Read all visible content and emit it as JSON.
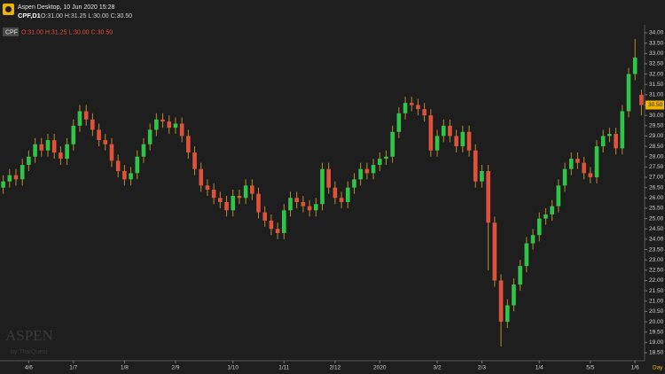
{
  "app_title": "Aspen Desktop, 10 Jun 2020 15:28",
  "symbol_label": "CPF,D1",
  "header_ohlc": "O:31.00 H:31.25 L:30.00 C:30.50",
  "badge": "CPF",
  "badge_ohlc": "O:31.00 H:31.25 L:30.00 C:30.50",
  "watermark": "ASPEN",
  "watermark_sub": "by ThaiQuest",
  "chart_data": {
    "type": "candlestick",
    "x_unit": "Day",
    "last_price_label": "30.50",
    "up_color": "#2fc548",
    "down_color": "#e2513a",
    "wick_color": "#b88a2e",
    "grid": false,
    "ylim": [
      18.2,
      34.3
    ],
    "yticks": [
      {
        "value": 18.5,
        "label": "18.50"
      },
      {
        "value": 19,
        "label": "19.00"
      },
      {
        "value": 19.5,
        "label": "19.50"
      },
      {
        "value": 20,
        "label": "20.00"
      },
      {
        "value": 20.5,
        "label": "20.50"
      },
      {
        "value": 21,
        "label": "21.00"
      },
      {
        "value": 21.5,
        "label": "21.50"
      },
      {
        "value": 22,
        "label": "22.00"
      },
      {
        "value": 22.5,
        "label": "22.50"
      },
      {
        "value": 23,
        "label": "23.00"
      },
      {
        "value": 23.5,
        "label": "23.50"
      },
      {
        "value": 24,
        "label": "24.00"
      },
      {
        "value": 24.5,
        "label": "24.50"
      },
      {
        "value": 25,
        "label": "25.00"
      },
      {
        "value": 25.5,
        "label": "25.50"
      },
      {
        "value": 26,
        "label": "26.00"
      },
      {
        "value": 26.5,
        "label": "26.50"
      },
      {
        "value": 27,
        "label": "27.00"
      },
      {
        "value": 27.5,
        "label": "27.50"
      },
      {
        "value": 28,
        "label": "28.00"
      },
      {
        "value": 28.5,
        "label": "28.50"
      },
      {
        "value": 29,
        "label": "29.00"
      },
      {
        "value": 29.5,
        "label": "29.50"
      },
      {
        "value": 30,
        "label": "30.00"
      },
      {
        "value": 30.5,
        "label": "30.50"
      },
      {
        "value": 31,
        "label": "31.00"
      },
      {
        "value": 31.5,
        "label": "31.50"
      },
      {
        "value": 32,
        "label": "32.00"
      },
      {
        "value": 32.5,
        "label": "32.50"
      },
      {
        "value": 33,
        "label": "33.00"
      },
      {
        "value": 33.5,
        "label": "33.50"
      },
      {
        "value": 34,
        "label": "34.00"
      }
    ],
    "categories": [
      null,
      null,
      null,
      null,
      "4/6",
      null,
      null,
      null,
      null,
      null,
      null,
      "1/7",
      null,
      null,
      null,
      null,
      null,
      null,
      null,
      "1/8",
      null,
      null,
      null,
      null,
      null,
      null,
      null,
      "2/9",
      null,
      null,
      null,
      null,
      null,
      null,
      null,
      null,
      "1/10",
      null,
      null,
      null,
      null,
      null,
      null,
      null,
      "1/11",
      null,
      null,
      null,
      null,
      null,
      null,
      null,
      "2/12",
      null,
      null,
      null,
      null,
      null,
      null,
      "2020",
      null,
      null,
      null,
      null,
      null,
      null,
      null,
      null,
      "3/2",
      null,
      null,
      null,
      null,
      null,
      null,
      "2/3",
      null,
      null,
      null,
      null,
      null,
      null,
      null,
      null,
      "1/4",
      null,
      null,
      null,
      null,
      null,
      null,
      null,
      "5/5",
      null,
      null,
      null,
      null,
      null,
      null,
      "1/6",
      null
    ],
    "open": [
      26.5,
      26.8,
      27.1,
      26.9,
      27.6,
      28.0,
      28.6,
      28.3,
      28.8,
      28.2,
      27.9,
      28.6,
      29.5,
      30.2,
      29.8,
      29.3,
      28.8,
      28.6,
      27.8,
      27.3,
      26.9,
      27.2,
      28.0,
      28.6,
      29.3,
      29.8,
      29.7,
      29.4,
      29.6,
      29.0,
      28.2,
      27.4,
      26.6,
      26.4,
      26.0,
      25.8,
      25.4,
      26.1,
      26.0,
      26.6,
      26.2,
      25.3,
      24.9,
      24.5,
      24.3,
      25.4,
      26.0,
      25.8,
      25.6,
      25.4,
      25.7,
      27.4,
      26.5,
      26.0,
      25.8,
      26.5,
      26.9,
      27.4,
      27.2,
      27.6,
      27.9,
      28.0,
      29.2,
      30.1,
      30.6,
      30.5,
      30.3,
      30.0,
      28.3,
      29.0,
      29.5,
      29.0,
      28.5,
      29.2,
      28.3,
      26.8,
      27.3,
      24.8,
      22.0,
      20.0,
      20.8,
      21.8,
      22.7,
      23.8,
      24.2,
      25.0,
      25.2,
      25.6,
      26.6,
      27.4,
      27.9,
      27.7,
      27.2,
      27.0,
      28.5,
      29.0,
      29.1,
      28.4,
      30.2,
      32.0,
      31.0
    ],
    "high": [
      27.1,
      27.4,
      27.4,
      27.9,
      28.3,
      28.9,
      28.9,
      29.1,
      29.1,
      28.5,
      28.9,
      29.8,
      30.5,
      30.5,
      30.1,
      29.6,
      29.1,
      28.9,
      28.1,
      27.6,
      27.5,
      28.3,
      28.9,
      29.6,
      30.1,
      30.1,
      30.0,
      29.9,
      29.9,
      29.3,
      28.5,
      27.7,
      26.9,
      26.7,
      26.3,
      26.1,
      26.4,
      26.4,
      26.9,
      26.9,
      26.5,
      25.6,
      25.2,
      24.8,
      25.7,
      26.3,
      26.3,
      26.1,
      25.9,
      26.0,
      27.7,
      27.7,
      26.8,
      26.3,
      26.8,
      27.2,
      27.7,
      27.7,
      27.9,
      28.2,
      28.3,
      29.5,
      30.4,
      30.9,
      30.9,
      30.8,
      30.6,
      30.3,
      29.3,
      29.8,
      29.8,
      29.3,
      29.5,
      29.5,
      28.6,
      27.6,
      27.6,
      25.1,
      22.3,
      21.1,
      22.1,
      23.0,
      24.1,
      24.5,
      25.3,
      25.5,
      25.9,
      26.9,
      27.7,
      28.2,
      28.2,
      28.0,
      27.5,
      28.8,
      29.3,
      29.4,
      29.4,
      30.5,
      32.3,
      33.7,
      31.25
    ],
    "low": [
      26.2,
      26.5,
      26.6,
      26.6,
      27.3,
      27.7,
      28.0,
      28.0,
      27.9,
      27.6,
      27.6,
      28.3,
      29.2,
      29.5,
      29.0,
      28.5,
      28.3,
      27.5,
      27.0,
      26.6,
      26.6,
      26.9,
      27.7,
      28.3,
      29.0,
      29.4,
      29.1,
      29.1,
      28.7,
      27.9,
      27.1,
      26.3,
      26.1,
      25.7,
      25.5,
      25.1,
      25.1,
      25.7,
      25.7,
      25.9,
      25.0,
      24.6,
      24.2,
      24.0,
      24.0,
      25.1,
      25.5,
      25.3,
      25.1,
      25.1,
      25.4,
      26.2,
      25.7,
      25.5,
      25.5,
      26.2,
      26.6,
      26.9,
      26.9,
      27.3,
      27.6,
      27.7,
      28.9,
      29.8,
      30.2,
      30.0,
      29.7,
      28.0,
      28.0,
      28.7,
      28.7,
      28.2,
      28.2,
      28.0,
      26.5,
      26.5,
      22.5,
      21.7,
      18.8,
      19.7,
      20.5,
      21.5,
      22.4,
      23.5,
      23.9,
      24.7,
      24.9,
      25.3,
      26.3,
      27.1,
      27.4,
      26.9,
      26.7,
      26.7,
      28.2,
      28.7,
      28.1,
      28.1,
      29.9,
      31.7,
      30.0
    ],
    "close": [
      26.8,
      27.1,
      26.9,
      27.6,
      28.0,
      28.6,
      28.3,
      28.8,
      28.2,
      27.9,
      28.6,
      29.5,
      30.2,
      29.8,
      29.3,
      28.8,
      28.6,
      27.8,
      27.3,
      26.9,
      27.2,
      28.0,
      28.6,
      29.3,
      29.8,
      29.7,
      29.4,
      29.6,
      29.0,
      28.2,
      27.4,
      26.6,
      26.4,
      26.0,
      25.8,
      25.4,
      26.1,
      26.0,
      26.6,
      26.2,
      25.3,
      24.9,
      24.5,
      24.3,
      25.4,
      26.0,
      25.8,
      25.6,
      25.4,
      25.7,
      27.4,
      26.5,
      26.0,
      25.8,
      26.5,
      26.9,
      27.4,
      27.2,
      27.6,
      27.9,
      28.0,
      29.2,
      30.1,
      30.6,
      30.5,
      30.3,
      30.0,
      28.3,
      29.0,
      29.5,
      29.0,
      28.5,
      29.2,
      28.3,
      26.8,
      27.3,
      24.8,
      22.0,
      20.0,
      20.8,
      21.8,
      22.7,
      23.8,
      24.2,
      25.0,
      25.2,
      25.6,
      26.6,
      27.4,
      27.9,
      27.7,
      27.2,
      27.0,
      28.5,
      29.0,
      29.1,
      28.4,
      30.2,
      32.0,
      32.8,
      30.5
    ]
  }
}
